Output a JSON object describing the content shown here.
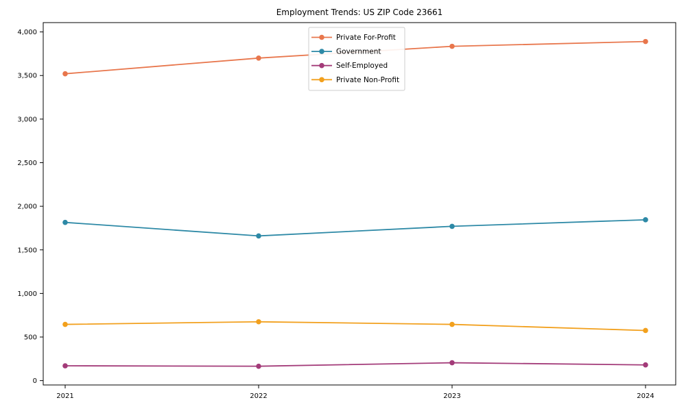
{
  "chart_data": {
    "type": "line",
    "title": "Employment Trends: US ZIP Code 23661",
    "x_categories": [
      "2021",
      "2022",
      "2023",
      "2024"
    ],
    "series": [
      {
        "name": "Private For-Profit",
        "color": "#e8764c",
        "values": [
          3520,
          3700,
          3835,
          3890
        ]
      },
      {
        "name": "Government",
        "color": "#2d89a6",
        "values": [
          1815,
          1660,
          1770,
          1845
        ]
      },
      {
        "name": "Self-Employed",
        "color": "#a33b79",
        "values": [
          170,
          165,
          205,
          180
        ]
      },
      {
        "name": "Private Non-Profit",
        "color": "#f2a01d",
        "values": [
          645,
          675,
          645,
          575
        ]
      }
    ],
    "ylabel": "",
    "xlabel": "",
    "yticks": [
      0,
      500,
      1000,
      1500,
      2000,
      2500,
      3000,
      3500,
      4000
    ],
    "ytick_labels": [
      "0",
      "500",
      "1,000",
      "1,500",
      "2,000",
      "2,500",
      "3,000",
      "3,500",
      "4,000"
    ],
    "ylim": [
      -50,
      4107
    ],
    "grid": false,
    "legend_position": "upper center",
    "colors": {
      "axis": "#000000",
      "background": "#ffffff",
      "legend_border": "#cccccc",
      "legend_fill": "#ffffff"
    }
  }
}
